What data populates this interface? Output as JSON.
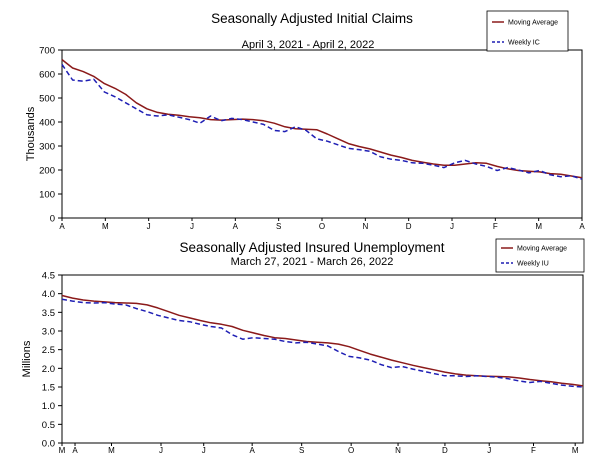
{
  "chart_data": [
    {
      "type": "line",
      "title": "Seasonally Adjusted Initial Claims",
      "subtitle": "April 3, 2021 - April 2, 2022",
      "ylabel": "Thousands",
      "xlabel": "",
      "ylim": [
        0,
        700
      ],
      "yticks": [
        "0",
        "100",
        "200",
        "300",
        "400",
        "500",
        "600",
        "700"
      ],
      "xticks": [
        "A",
        "M",
        "J",
        "J",
        "A",
        "S",
        "O",
        "N",
        "D",
        "J",
        "F",
        "M",
        "A"
      ],
      "legend": "top-right",
      "grid": false,
      "series": [
        {
          "name": "Moving Average",
          "color": "#8B1A1A",
          "style": "solid",
          "values": [
            660,
            625,
            610,
            590,
            560,
            540,
            515,
            480,
            455,
            440,
            432,
            428,
            422,
            418,
            410,
            408,
            410,
            412,
            410,
            405,
            395,
            380,
            372,
            370,
            368,
            350,
            330,
            310,
            298,
            288,
            275,
            262,
            252,
            240,
            232,
            225,
            220,
            220,
            225,
            230,
            228,
            215,
            205,
            198,
            195,
            192,
            185,
            182,
            175,
            168
          ]
        },
        {
          "name": "Weekly IC",
          "color": "#1E1EB4",
          "style": "dashed",
          "values": [
            640,
            575,
            570,
            578,
            525,
            505,
            480,
            455,
            430,
            425,
            430,
            420,
            410,
            395,
            425,
            405,
            415,
            410,
            400,
            390,
            365,
            360,
            380,
            365,
            330,
            320,
            305,
            290,
            285,
            278,
            255,
            245,
            240,
            230,
            228,
            220,
            210,
            230,
            240,
            225,
            215,
            198,
            210,
            200,
            188,
            198,
            180,
            172,
            176,
            162
          ]
        }
      ]
    },
    {
      "type": "line",
      "title": "Seasonally Adjusted Insured Unemployment",
      "subtitle": "March 27, 2021 - March 26, 2022",
      "ylabel": "Millions",
      "xlabel": "",
      "ylim": [
        0,
        4.5
      ],
      "yticks": [
        "0.0",
        "0.5",
        "1.0",
        "1.5",
        "2.0",
        "2.5",
        "3.0",
        "3.5",
        "4.0",
        "4.5"
      ],
      "xticks": [
        "M",
        "A",
        "M",
        "J",
        "J",
        "A",
        "S",
        "O",
        "N",
        "D",
        "J",
        "F",
        "M"
      ],
      "legend": "top-right",
      "grid": false,
      "series": [
        {
          "name": "Moving Average",
          "color": "#8B1A1A",
          "style": "solid",
          "values": [
            3.95,
            3.88,
            3.83,
            3.8,
            3.78,
            3.76,
            3.75,
            3.74,
            3.7,
            3.62,
            3.52,
            3.42,
            3.35,
            3.28,
            3.22,
            3.18,
            3.12,
            3.02,
            2.95,
            2.88,
            2.82,
            2.8,
            2.76,
            2.72,
            2.7,
            2.68,
            2.65,
            2.58,
            2.48,
            2.38,
            2.3,
            2.22,
            2.15,
            2.08,
            2.02,
            1.96,
            1.9,
            1.85,
            1.82,
            1.8,
            1.79,
            1.78,
            1.77,
            1.74,
            1.7,
            1.67,
            1.64,
            1.6,
            1.57,
            1.53
          ]
        },
        {
          "name": "Weekly IU",
          "color": "#1E1EB4",
          "style": "dashed",
          "values": [
            3.85,
            3.8,
            3.76,
            3.75,
            3.76,
            3.72,
            3.7,
            3.6,
            3.52,
            3.42,
            3.35,
            3.28,
            3.25,
            3.18,
            3.12,
            3.08,
            2.9,
            2.78,
            2.82,
            2.8,
            2.78,
            2.72,
            2.68,
            2.7,
            2.65,
            2.6,
            2.45,
            2.32,
            2.28,
            2.22,
            2.1,
            2.02,
            2.05,
            1.98,
            1.92,
            1.86,
            1.8,
            1.8,
            1.78,
            1.8,
            1.78,
            1.76,
            1.72,
            1.66,
            1.62,
            1.65,
            1.6,
            1.55,
            1.52,
            1.5
          ]
        }
      ]
    }
  ]
}
